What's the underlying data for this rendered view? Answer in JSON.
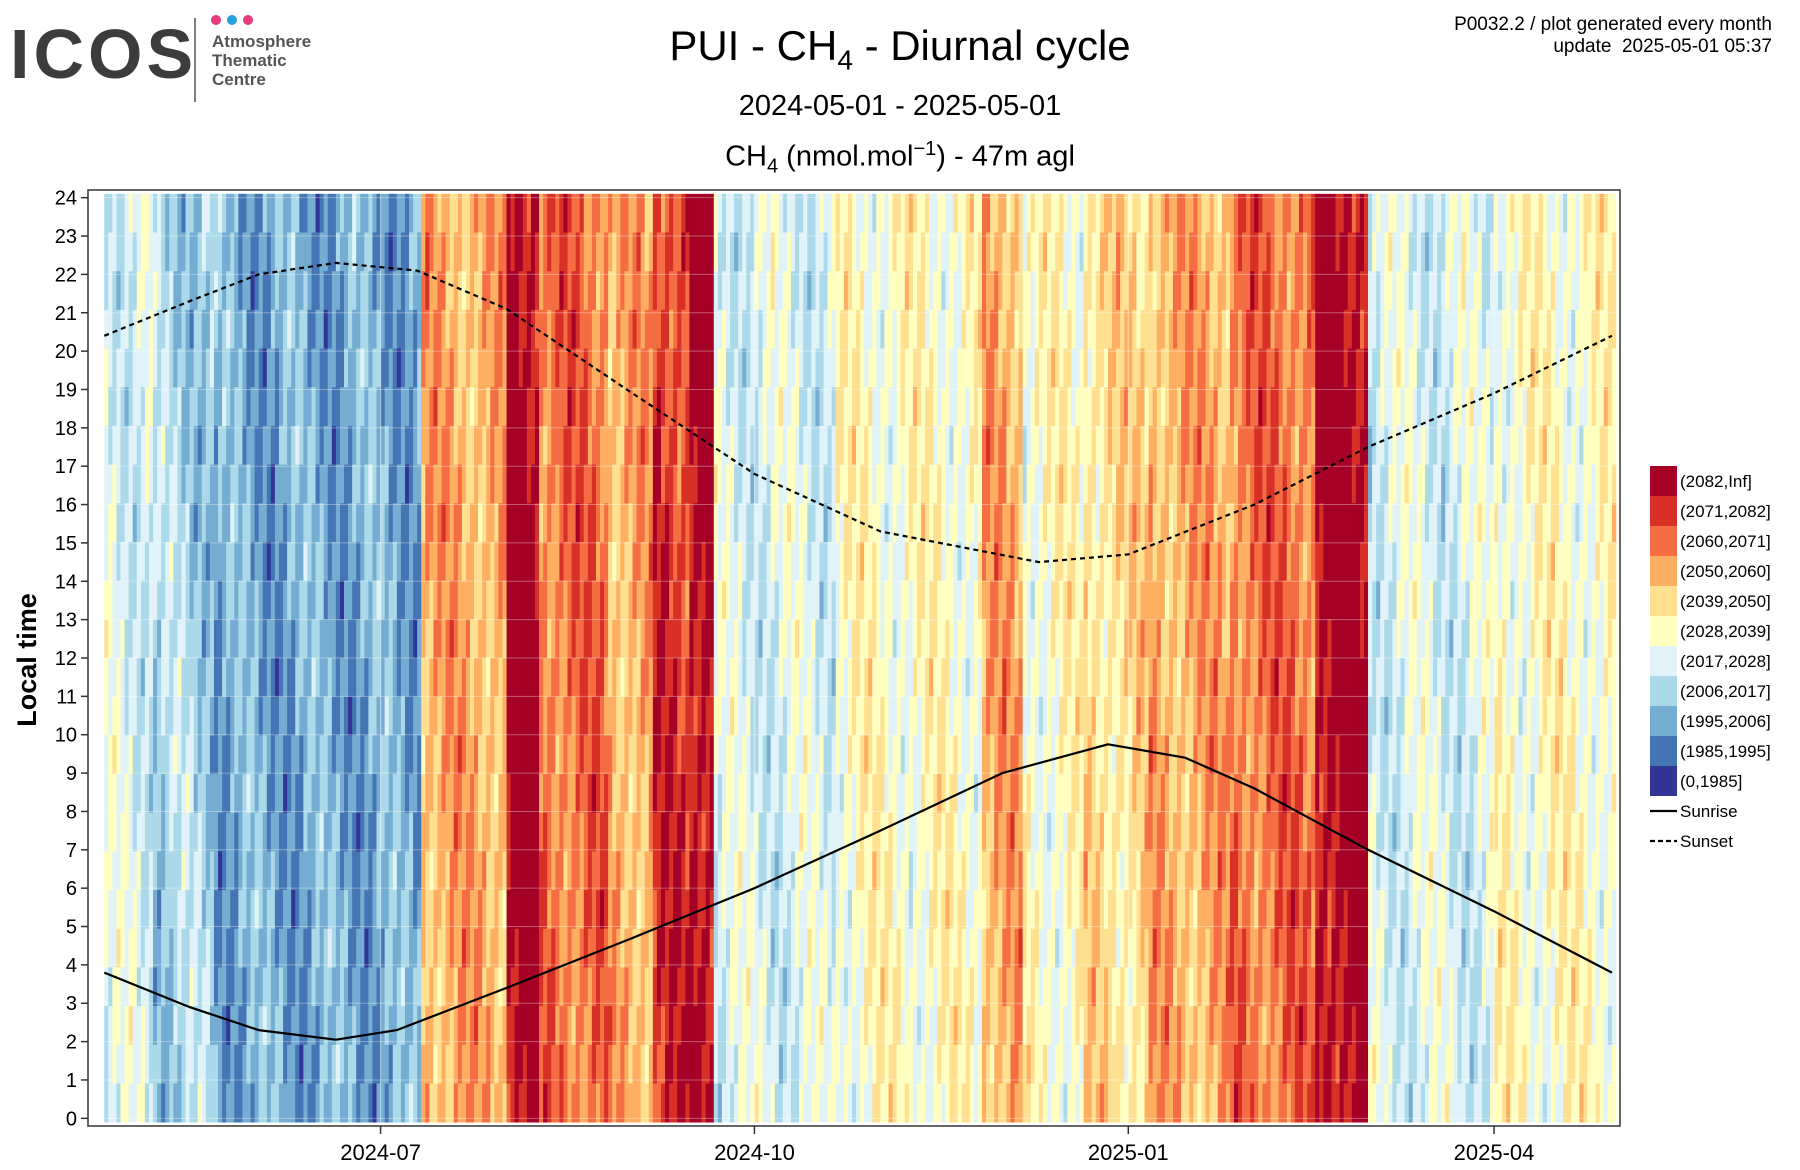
{
  "logo": {
    "wordmark": "ICOS",
    "lines": [
      "Atmosphere",
      "Thematic",
      "Centre"
    ],
    "dot_colors": [
      "#e6397a",
      "#25a4dc",
      "#e6397a"
    ]
  },
  "header": {
    "meta_line1": "P0032.2 / plot generated every month",
    "meta_line2": "update  2025-05-01 05:37",
    "title_pre": "PUI - CH",
    "title_sub": "4",
    "title_post": " - Diurnal cycle",
    "subtitle": "2024-05-01 - 2025-05-01",
    "unit_pre": "CH",
    "unit_sub": "4",
    "unit_mid": " (nmol.mol",
    "unit_sup": "−1",
    "unit_post": ") - 47m agl"
  },
  "chart_data": {
    "type": "heatmap",
    "ylabel": "Local time",
    "xlim": [
      "2024-04-20",
      "2025-05-02"
    ],
    "ylim": [
      -0.2,
      24.2
    ],
    "yticks": [
      0,
      1,
      2,
      3,
      4,
      5,
      6,
      7,
      8,
      9,
      10,
      11,
      12,
      13,
      14,
      15,
      16,
      17,
      18,
      19,
      20,
      21,
      22,
      23,
      24
    ],
    "xticks": [
      {
        "date": "2024-07-01",
        "label": "2024-07"
      },
      {
        "date": "2024-10-01",
        "label": "2024-10"
      },
      {
        "date": "2025-01-01",
        "label": "2025-01"
      },
      {
        "date": "2025-04-01",
        "label": "2025-04"
      }
    ],
    "grid": true,
    "legend_position": "right",
    "bins": [
      {
        "label": "(2082,Inf]",
        "color": "#a50026"
      },
      {
        "label": "(2071,2082]",
        "color": "#d73027"
      },
      {
        "label": "(2060,2071]",
        "color": "#f46d43"
      },
      {
        "label": "(2050,2060]",
        "color": "#fdae61"
      },
      {
        "label": "(2039,2050]",
        "color": "#fee090"
      },
      {
        "label": "(2028,2039]",
        "color": "#ffffbf"
      },
      {
        "label": "(2017,2028]",
        "color": "#e0f3f8"
      },
      {
        "label": "(2006,2017]",
        "color": "#abd9e9"
      },
      {
        "label": "(1995,2006]",
        "color": "#74add1"
      },
      {
        "label": "(1985,1995]",
        "color": "#4575b4"
      },
      {
        "label": "(0,1985]",
        "color": "#313695"
      }
    ],
    "daily_bin_runs": [
      {
        "from": "2024-04-24",
        "to": "2024-05-05",
        "bin_index": 6
      },
      {
        "from": "2024-05-06",
        "to": "2024-05-20",
        "bin_index": 7
      },
      {
        "from": "2024-05-21",
        "to": "2024-06-10",
        "bin_index": 8
      },
      {
        "from": "2024-06-11",
        "to": "2024-06-30",
        "bin_index": 8
      },
      {
        "from": "2024-07-01",
        "to": "2024-07-10",
        "bin_index": 8
      },
      {
        "from": "2024-07-11",
        "to": "2024-07-31",
        "bin_index": 3
      },
      {
        "from": "2024-08-01",
        "to": "2024-08-08",
        "bin_index": 0
      },
      {
        "from": "2024-08-09",
        "to": "2024-08-25",
        "bin_index": 2
      },
      {
        "from": "2024-08-26",
        "to": "2024-09-05",
        "bin_index": 3
      },
      {
        "from": "2024-09-06",
        "to": "2024-09-14",
        "bin_index": 1
      },
      {
        "from": "2024-09-15",
        "to": "2024-09-20",
        "bin_index": 0
      },
      {
        "from": "2024-09-21",
        "to": "2024-10-20",
        "bin_index": 6
      },
      {
        "from": "2024-10-21",
        "to": "2024-11-25",
        "bin_index": 5
      },
      {
        "from": "2024-11-26",
        "to": "2024-12-05",
        "bin_index": 3
      },
      {
        "from": "2024-12-06",
        "to": "2024-12-20",
        "bin_index": 5
      },
      {
        "from": "2024-12-21",
        "to": "2025-01-05",
        "bin_index": 4
      },
      {
        "from": "2025-01-06",
        "to": "2025-01-25",
        "bin_index": 3
      },
      {
        "from": "2025-01-26",
        "to": "2025-02-15",
        "bin_index": 2
      },
      {
        "from": "2025-02-16",
        "to": "2025-02-28",
        "bin_index": 0
      },
      {
        "from": "2025-03-01",
        "to": "2025-03-31",
        "bin_index": 6
      },
      {
        "from": "2025-04-01",
        "to": "2025-04-30",
        "bin_index": 5
      }
    ],
    "series": [
      {
        "name": "Sunrise",
        "style": "solid",
        "points": [
          {
            "x": "2024-04-24",
            "y": 3.8
          },
          {
            "x": "2024-05-15",
            "y": 2.9
          },
          {
            "x": "2024-06-01",
            "y": 2.3
          },
          {
            "x": "2024-06-20",
            "y": 2.05
          },
          {
            "x": "2024-07-05",
            "y": 2.3
          },
          {
            "x": "2024-08-01",
            "y": 3.4
          },
          {
            "x": "2024-09-01",
            "y": 4.7
          },
          {
            "x": "2024-10-01",
            "y": 6.0
          },
          {
            "x": "2024-11-01",
            "y": 7.5
          },
          {
            "x": "2024-12-01",
            "y": 9.0
          },
          {
            "x": "2024-12-27",
            "y": 9.75
          },
          {
            "x": "2025-01-15",
            "y": 9.4
          },
          {
            "x": "2025-02-01",
            "y": 8.6
          },
          {
            "x": "2025-03-01",
            "y": 7.0
          },
          {
            "x": "2025-04-01",
            "y": 5.4
          },
          {
            "x": "2025-04-30",
            "y": 3.8
          }
        ]
      },
      {
        "name": "Sunset",
        "style": "dashed",
        "points": [
          {
            "x": "2024-04-24",
            "y": 20.4
          },
          {
            "x": "2024-05-15",
            "y": 21.3
          },
          {
            "x": "2024-06-01",
            "y": 22.0
          },
          {
            "x": "2024-06-20",
            "y": 22.3
          },
          {
            "x": "2024-07-10",
            "y": 22.1
          },
          {
            "x": "2024-08-01",
            "y": 21.1
          },
          {
            "x": "2024-09-01",
            "y": 18.9
          },
          {
            "x": "2024-10-01",
            "y": 16.8
          },
          {
            "x": "2024-11-01",
            "y": 15.3
          },
          {
            "x": "2024-12-10",
            "y": 14.5
          },
          {
            "x": "2025-01-01",
            "y": 14.7
          },
          {
            "x": "2025-02-01",
            "y": 16.0
          },
          {
            "x": "2025-03-01",
            "y": 17.5
          },
          {
            "x": "2025-04-01",
            "y": 18.9
          },
          {
            "x": "2025-04-30",
            "y": 20.4
          }
        ]
      }
    ]
  }
}
